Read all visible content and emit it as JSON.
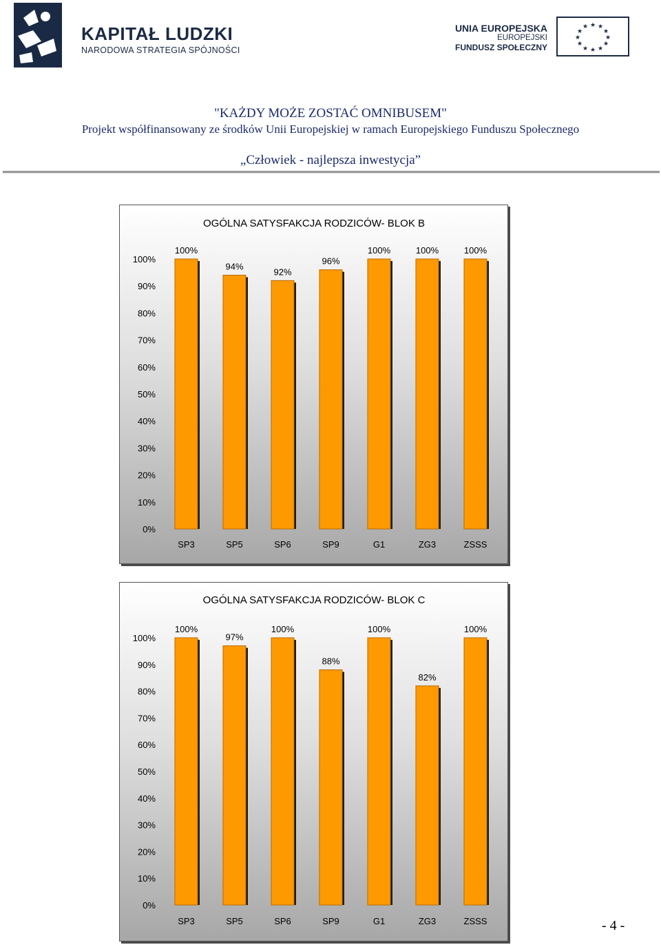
{
  "header": {
    "kapital_title": "KAPITAŁ LUDZKI",
    "kapital_subtitle": "NARODOWA STRATEGIA SPÓJNOŚCI",
    "eu_line1": "UNIA EUROPEJSKA",
    "eu_line2": "EUROPEJSKI",
    "eu_line3": "FUNDUSZ SPOŁECZNY",
    "project_title": "\"KAŻDY MOŻE ZOSTAĆ OMNIBUSEM\"",
    "project_subtitle": "Projekt współfinansowany ze środków Unii Europejskiej w ramach Europejskiego Funduszu Społecznego",
    "slogan": "„Człowiek - najlepsza inwestycja”"
  },
  "colors": {
    "bar_fill": "#ff9900",
    "bar_edge": "#b86a00",
    "bar_shadow": "#1a1a1a",
    "text": "#000000"
  },
  "chart_data": [
    {
      "type": "bar",
      "title": "OGÓLNA SATYSFAKCJA RODZICÓW- BLOK B",
      "categories": [
        "SP3",
        "SP5",
        "SP6",
        "SP9",
        "G1",
        "ZG3",
        "ZSSS"
      ],
      "values": [
        100,
        94,
        92,
        96,
        100,
        100,
        100
      ],
      "value_labels": [
        "100%",
        "94%",
        "92%",
        "96%",
        "100%",
        "100%",
        "100%"
      ],
      "ylim": [
        0,
        100
      ],
      "yticks": [
        "0%",
        "10%",
        "20%",
        "30%",
        "40%",
        "50%",
        "60%",
        "70%",
        "80%",
        "90%",
        "100%"
      ],
      "grid": false,
      "legend": "none"
    },
    {
      "type": "bar",
      "title": "OGÓLNA SATYSFAKCJA RODZICÓW- BLOK C",
      "categories": [
        "SP3",
        "SP5",
        "SP6",
        "SP9",
        "G1",
        "ZG3",
        "ZSSS"
      ],
      "values": [
        100,
        97,
        100,
        88,
        100,
        82,
        100
      ],
      "value_labels": [
        "100%",
        "97%",
        "100%",
        "88%",
        "100%",
        "82%",
        "100%"
      ],
      "ylim": [
        0,
        100
      ],
      "yticks": [
        "0%",
        "10%",
        "20%",
        "30%",
        "40%",
        "50%",
        "60%",
        "70%",
        "80%",
        "90%",
        "100%"
      ],
      "grid": false,
      "legend": "none"
    }
  ],
  "page_number": "- 4 -"
}
